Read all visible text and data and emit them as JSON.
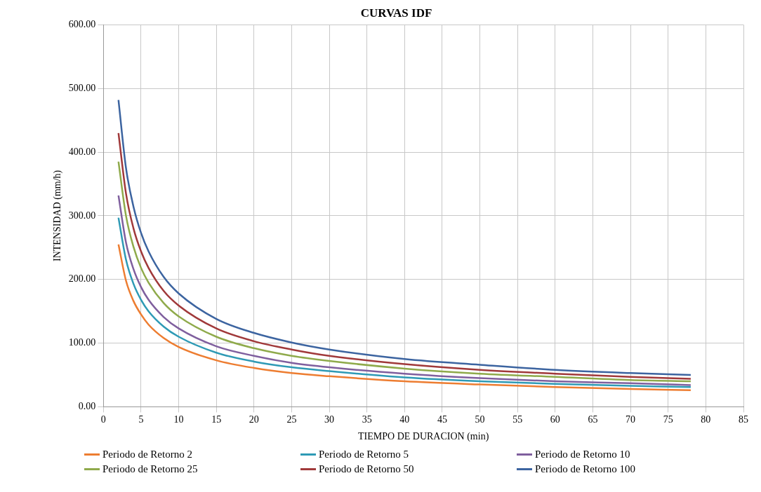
{
  "chart_data": {
    "type": "line",
    "title": "CURVAS IDF",
    "xlabel": "TIEMPO DE DURACION (min)",
    "ylabel": "INTENSIDAD (mm/h)",
    "x": [
      2,
      3,
      4,
      5,
      6,
      8,
      10,
      15,
      20,
      25,
      30,
      40,
      50,
      60,
      70,
      78
    ],
    "series": [
      {
        "name": "Periodo de Retorno 2",
        "color": "#ed7d31",
        "values": [
          255,
          198,
          166,
          145,
          129,
          108,
          94,
          73,
          61,
          53,
          48,
          40,
          35,
          31,
          28,
          26
        ]
      },
      {
        "name": "Periodo de Retorno 5",
        "color": "#2e9ab5",
        "values": [
          297,
          231,
          193,
          168,
          150,
          126,
          110,
          85,
          71,
          62,
          56,
          46,
          40,
          36,
          33,
          31
        ]
      },
      {
        "name": "Periodo de Retorno 10",
        "color": "#7f5f9e",
        "values": [
          332,
          258,
          216,
          188,
          168,
          141,
          123,
          95,
          80,
          69,
          62,
          52,
          45,
          40,
          37,
          34
        ]
      },
      {
        "name": "Periodo de Retorno 25",
        "color": "#8faa4b",
        "values": [
          385,
          300,
          251,
          218,
          195,
          163,
          142,
          110,
          92,
          80,
          72,
          60,
          52,
          47,
          42,
          40
        ]
      },
      {
        "name": "Periodo de Retorno 50",
        "color": "#a0393a",
        "values": [
          430,
          335,
          280,
          244,
          218,
          182,
          159,
          123,
          103,
          90,
          80,
          67,
          58,
          52,
          47,
          44
        ]
      },
      {
        "name": "Periodo de Retorno 100",
        "color": "#3c64a0",
        "values": [
          482,
          375,
          314,
          273,
          244,
          204,
          178,
          138,
          116,
          101,
          90,
          75,
          66,
          58,
          53,
          50
        ]
      }
    ],
    "xlim": [
      0,
      85
    ],
    "xticks": [
      0,
      5,
      10,
      15,
      20,
      25,
      30,
      35,
      40,
      45,
      50,
      55,
      60,
      65,
      70,
      75,
      80,
      85
    ],
    "ylim": [
      0,
      600
    ],
    "yticks": [
      {
        "value": 0,
        "label": "0.00"
      },
      {
        "value": 100,
        "label": "100.00"
      },
      {
        "value": 200,
        "label": "200.00"
      },
      {
        "value": 300,
        "label": "300.00"
      },
      {
        "value": 400,
        "label": "400.00"
      },
      {
        "value": 500,
        "label": "500.00"
      },
      {
        "value": 600,
        "label": "600.00"
      }
    ],
    "grid": true,
    "legend": "bottom",
    "marker": "none",
    "line_style": "solid"
  }
}
